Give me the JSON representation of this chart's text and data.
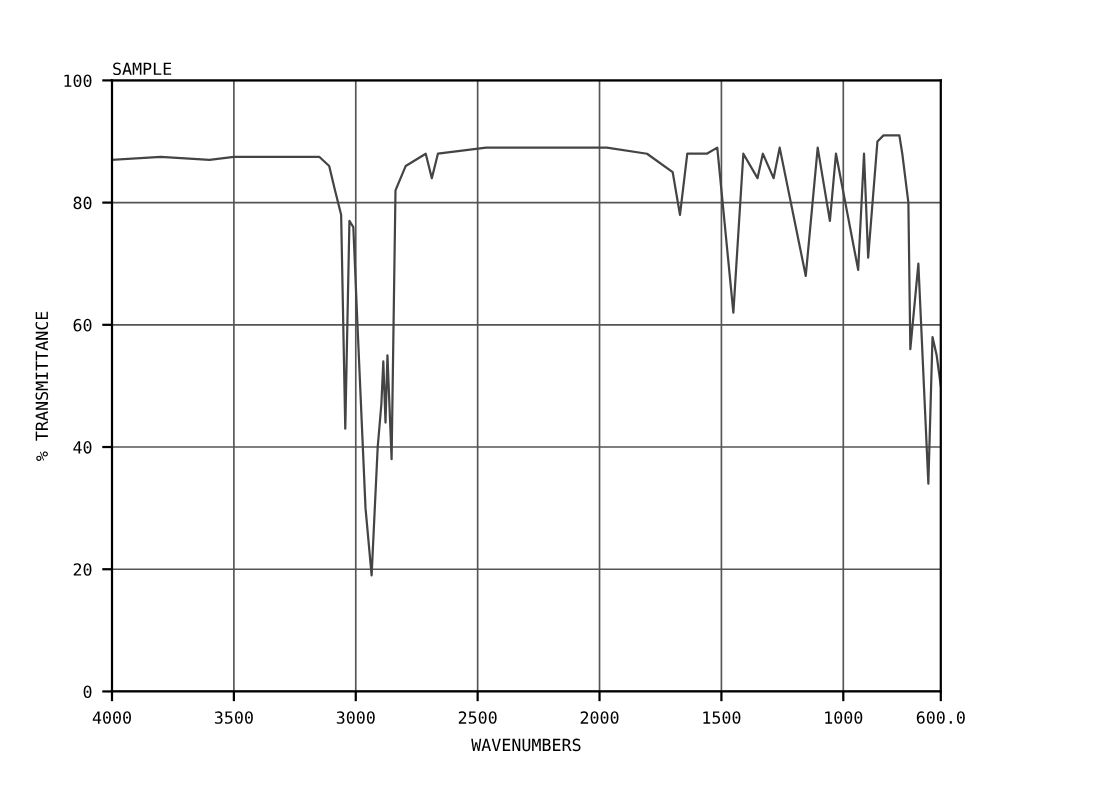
{
  "chart_data": {
    "type": "line",
    "title": "SAMPLE",
    "xlabel": "WAVENUMBERS",
    "ylabel": "% TRANSMITTANCE",
    "xlim": [
      4000,
      600
    ],
    "ylim": [
      0,
      100
    ],
    "xticks": [
      4000,
      3500,
      3000,
      2500,
      2000,
      1500,
      1000,
      {
        "value": 600,
        "label": "600.0"
      }
    ],
    "yticks": [
      0,
      20,
      40,
      60,
      80,
      100
    ],
    "grid": true,
    "marker": "none",
    "line_style": "solid",
    "series": [
      {
        "color": "#444444",
        "x": [
          4000,
          3800,
          3600,
          3500,
          3300,
          3150,
          3109,
          3085,
          3060,
          3043,
          3026,
          3010,
          2993,
          2960,
          2935,
          2910,
          2895,
          2887,
          2878,
          2870,
          2853,
          2837,
          2795,
          2713,
          2688,
          2663,
          2465,
          2200,
          1970,
          1805,
          1700,
          1670,
          1640,
          1560,
          1517,
          1451,
          1410,
          1352,
          1330,
          1286,
          1261,
          1154,
          1105,
          1055,
          1030,
          939,
          915,
          898,
          860,
          835,
          770,
          758,
          733,
          725,
          692,
          651,
          634,
          617,
          600
        ],
        "values": [
          87,
          87.5,
          87,
          87.5,
          87.5,
          87.5,
          86,
          82,
          78,
          43,
          77,
          76,
          60,
          30,
          19,
          40,
          47,
          54,
          44,
          55,
          38,
          82,
          86,
          88,
          84,
          88,
          89,
          89,
          89,
          88,
          85,
          78,
          88,
          88,
          89,
          62,
          88,
          84,
          88,
          84,
          89,
          68,
          89,
          77,
          88,
          69,
          88,
          71,
          90,
          91,
          91,
          88,
          80,
          56,
          70,
          34,
          58,
          55,
          50
        ]
      }
    ]
  }
}
